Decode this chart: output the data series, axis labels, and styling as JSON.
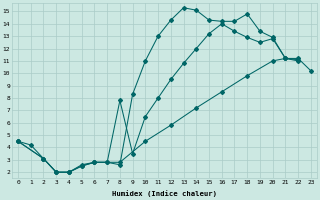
{
  "bg_color": "#cce8e2",
  "grid_color": "#aaccc8",
  "line_color": "#006666",
  "xlim": [
    -0.5,
    23.5
  ],
  "ylim": [
    1.5,
    15.7
  ],
  "xticks": [
    0,
    1,
    2,
    3,
    4,
    5,
    6,
    7,
    8,
    9,
    10,
    11,
    12,
    13,
    14,
    15,
    16,
    17,
    18,
    19,
    20,
    21,
    22,
    23
  ],
  "yticks": [
    2,
    3,
    4,
    5,
    6,
    7,
    8,
    9,
    10,
    11,
    12,
    13,
    14,
    15
  ],
  "xlabel": "Humidex (Indice chaleur)",
  "curve1_x": [
    0,
    1,
    2,
    3,
    4,
    5,
    6,
    7,
    8,
    9,
    10,
    11,
    12,
    13,
    14,
    15,
    16,
    17,
    18,
    19,
    20,
    21,
    22
  ],
  "curve1_y": [
    4.5,
    4.2,
    3.1,
    2.0,
    2.0,
    2.6,
    2.8,
    2.8,
    2.6,
    8.3,
    11.0,
    13.0,
    14.3,
    15.3,
    15.1,
    14.3,
    14.2,
    14.2,
    14.8,
    13.4,
    12.9,
    11.2,
    11.1
  ],
  "curve2_x": [
    0,
    2,
    3,
    4,
    5,
    6,
    7,
    8,
    9,
    10,
    11,
    12,
    13,
    14,
    15,
    16,
    17,
    18,
    19,
    20,
    21,
    22
  ],
  "curve2_y": [
    4.5,
    3.1,
    2.0,
    2.0,
    2.5,
    2.8,
    2.8,
    7.8,
    3.5,
    6.5,
    8.0,
    9.5,
    10.8,
    12.0,
    13.2,
    14.0,
    13.4,
    12.9,
    12.5,
    12.8,
    11.2,
    11.0
  ],
  "curve3_x": [
    0,
    2,
    3,
    4,
    5,
    6,
    8,
    10,
    12,
    14,
    16,
    18,
    20,
    21,
    22,
    23
  ],
  "curve3_y": [
    4.5,
    3.1,
    2.0,
    2.0,
    2.5,
    2.8,
    2.8,
    4.5,
    5.8,
    7.2,
    8.5,
    9.8,
    11.0,
    11.2,
    11.2,
    10.2
  ]
}
